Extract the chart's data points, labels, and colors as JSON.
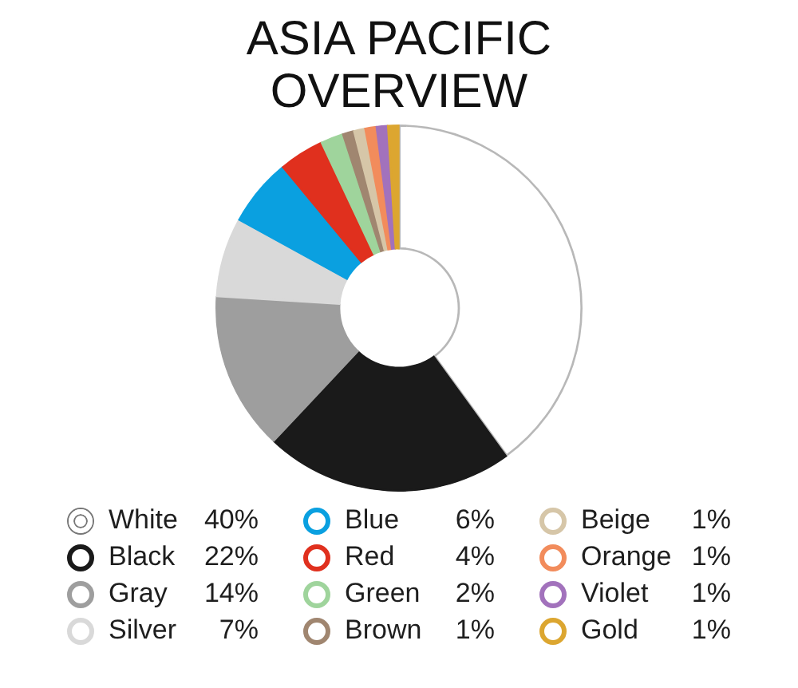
{
  "chart_data": {
    "type": "donut",
    "title": "ASIA PACIFIC OVERVIEW",
    "categories": [
      "White",
      "Black",
      "Gray",
      "Silver",
      "Blue",
      "Red",
      "Green",
      "Brown",
      "Beige",
      "Orange",
      "Violet",
      "Gold"
    ],
    "values": [
      40,
      22,
      14,
      7,
      6,
      4,
      2,
      1,
      1,
      1,
      1,
      1
    ],
    "colors": [
      "#ffffff",
      "#1a1a1a",
      "#9e9e9e",
      "#d9d9d9",
      "#0aa0e0",
      "#e0301e",
      "#9fd49c",
      "#a08670",
      "#d6c6a8",
      "#f28c5c",
      "#a272bc",
      "#dca630"
    ],
    "value_labels": [
      "40%",
      "22%",
      "14%",
      "7%",
      "6%",
      "4%",
      "2%",
      "1%",
      "1%",
      "1%",
      "1%",
      "1%"
    ],
    "legend": "bottom"
  }
}
